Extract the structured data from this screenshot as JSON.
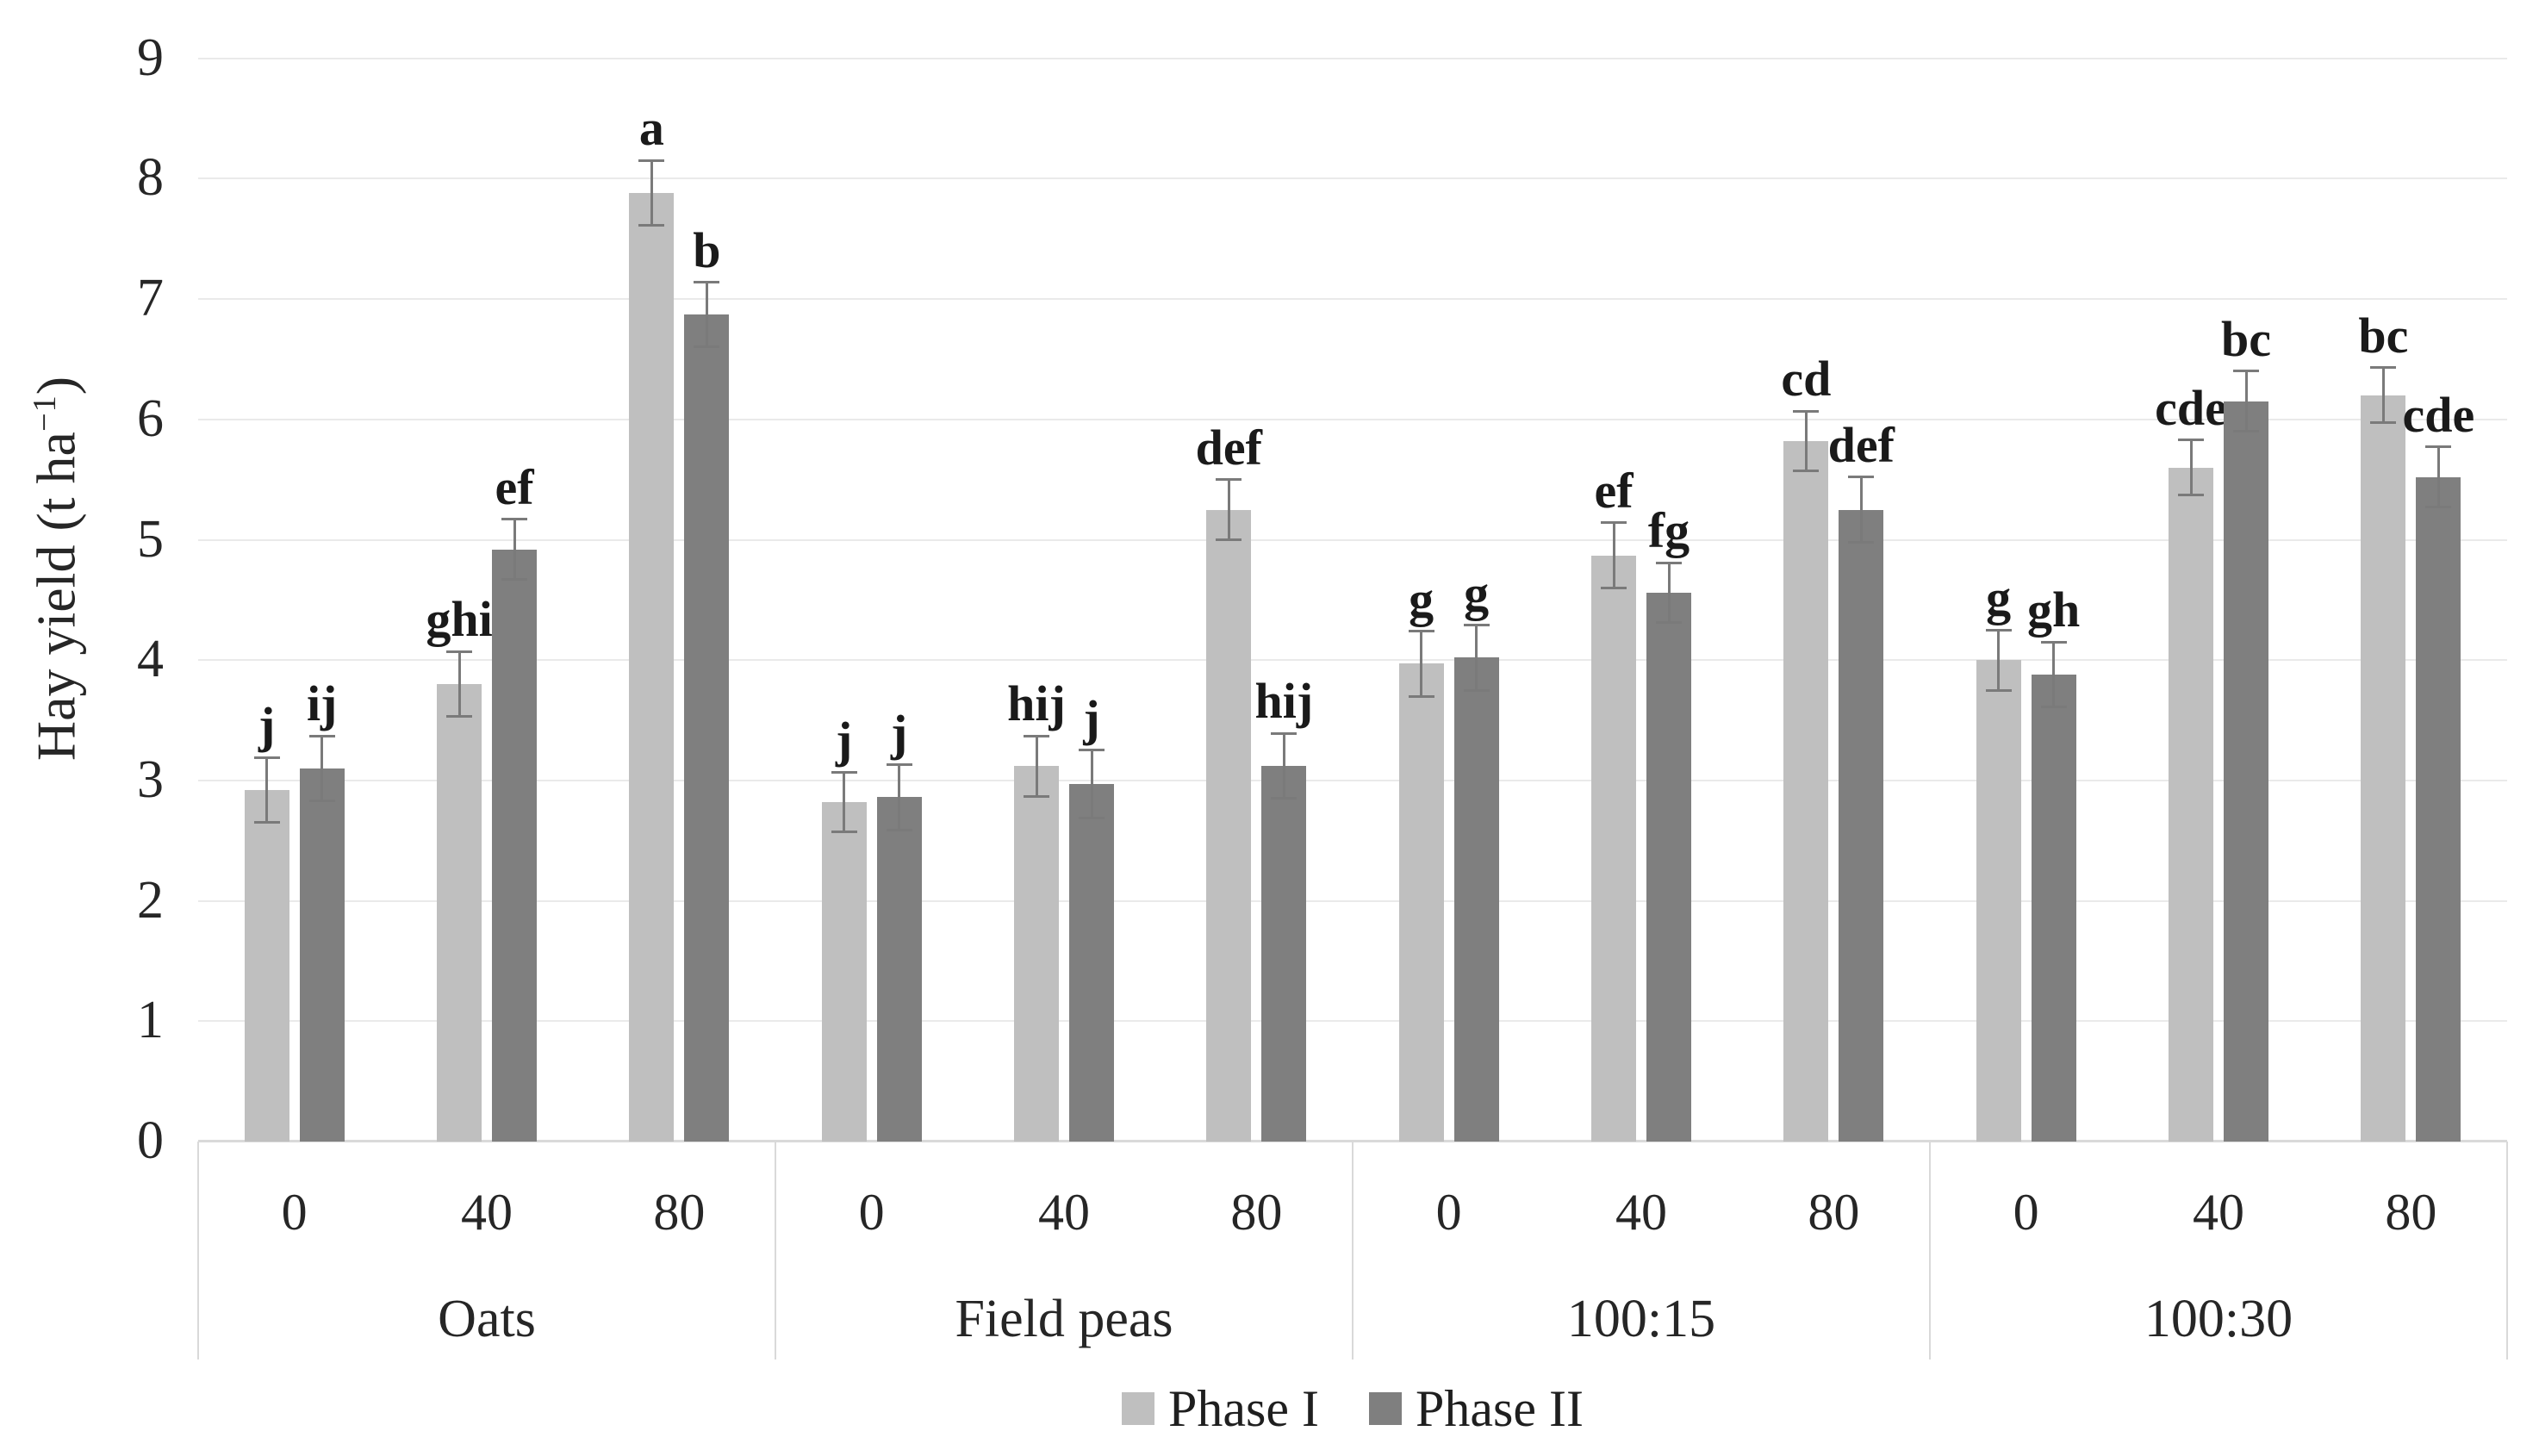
{
  "figure": {
    "y_axis": {
      "title_pre": "Hay yield (t ha",
      "title_sup": "−1",
      "title_post": ")"
    },
    "colors": {
      "phase1": "#bfbfbf",
      "phase2": "#7f7f7f",
      "gridline": "#eaeaea",
      "axis_line": "#d9d9d9",
      "error_bar": "#7a7a7a",
      "letter": "#1a1a1a"
    }
  },
  "chart_data": {
    "type": "bar",
    "title": "",
    "xlabel": "",
    "ylabel": "Hay yield (t ha−1)",
    "ylim": [
      0,
      9
    ],
    "yticks": [
      "0",
      "1",
      "2",
      "3",
      "4",
      "5",
      "6",
      "7",
      "8",
      "9"
    ],
    "grid": true,
    "legend_position": "bottom",
    "error_bars": true,
    "series": [
      "Phase I",
      "Phase II"
    ],
    "legend": [
      {
        "label": "Phase I",
        "color": "#bfbfbf"
      },
      {
        "label": "Phase II",
        "color": "#7f7f7f"
      }
    ],
    "groups": [
      {
        "label": "Oats",
        "items": [
          {
            "x": "0",
            "bars": [
              {
                "series": "Phase I",
                "value": 2.92,
                "err": 0.27,
                "letter": "j"
              },
              {
                "series": "Phase II",
                "value": 3.1,
                "err": 0.27,
                "letter": "ij"
              }
            ]
          },
          {
            "x": "40",
            "bars": [
              {
                "series": "Phase I",
                "value": 3.8,
                "err": 0.27,
                "letter": "ghi"
              },
              {
                "series": "Phase II",
                "value": 4.92,
                "err": 0.25,
                "letter": "ef"
              }
            ]
          },
          {
            "x": "80",
            "bars": [
              {
                "series": "Phase I",
                "value": 7.88,
                "err": 0.27,
                "letter": "a"
              },
              {
                "series": "Phase II",
                "value": 6.87,
                "err": 0.27,
                "letter": "b"
              }
            ]
          }
        ]
      },
      {
        "label": "Field peas",
        "items": [
          {
            "x": "0",
            "bars": [
              {
                "series": "Phase I",
                "value": 2.82,
                "err": 0.25,
                "letter": "j"
              },
              {
                "series": "Phase II",
                "value": 2.86,
                "err": 0.27,
                "letter": "j"
              }
            ]
          },
          {
            "x": "40",
            "bars": [
              {
                "series": "Phase I",
                "value": 3.12,
                "err": 0.25,
                "letter": "hij"
              },
              {
                "series": "Phase II",
                "value": 2.97,
                "err": 0.28,
                "letter": "j"
              }
            ]
          },
          {
            "x": "80",
            "bars": [
              {
                "series": "Phase I",
                "value": 5.25,
                "err": 0.25,
                "letter": "def"
              },
              {
                "series": "Phase II",
                "value": 3.12,
                "err": 0.27,
                "letter": "hij"
              }
            ]
          }
        ]
      },
      {
        "label": "100:15",
        "items": [
          {
            "x": "0",
            "bars": [
              {
                "series": "Phase I",
                "value": 3.97,
                "err": 0.27,
                "letter": "g"
              },
              {
                "series": "Phase II",
                "value": 4.02,
                "err": 0.27,
                "letter": "g"
              }
            ]
          },
          {
            "x": "40",
            "bars": [
              {
                "series": "Phase I",
                "value": 4.87,
                "err": 0.27,
                "letter": "ef"
              },
              {
                "series": "Phase II",
                "value": 4.56,
                "err": 0.25,
                "letter": "fg"
              }
            ]
          },
          {
            "x": "80",
            "bars": [
              {
                "series": "Phase I",
                "value": 5.82,
                "err": 0.25,
                "letter": "cd"
              },
              {
                "series": "Phase II",
                "value": 5.25,
                "err": 0.27,
                "letter": "def"
              }
            ]
          }
        ]
      },
      {
        "label": "100:30",
        "items": [
          {
            "x": "0",
            "bars": [
              {
                "series": "Phase I",
                "value": 4.0,
                "err": 0.25,
                "letter": "g"
              },
              {
                "series": "Phase II",
                "value": 3.88,
                "err": 0.27,
                "letter": "gh"
              }
            ]
          },
          {
            "x": "40",
            "bars": [
              {
                "series": "Phase I",
                "value": 5.6,
                "err": 0.23,
                "letter": "cde"
              },
              {
                "series": "Phase II",
                "value": 6.15,
                "err": 0.25,
                "letter": "bc"
              }
            ]
          },
          {
            "x": "80",
            "bars": [
              {
                "series": "Phase I",
                "value": 6.2,
                "err": 0.23,
                "letter": "bc"
              },
              {
                "series": "Phase II",
                "value": 5.52,
                "err": 0.25,
                "letter": "cde"
              }
            ]
          }
        ]
      }
    ]
  }
}
